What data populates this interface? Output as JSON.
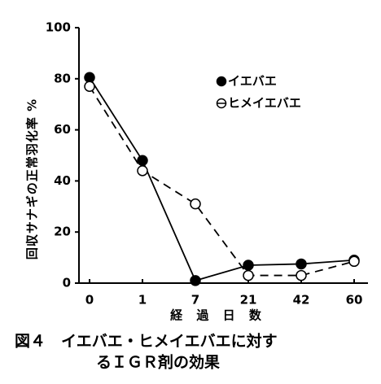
{
  "chart_data": {
    "type": "line",
    "y_label": "回収サナギの正常羽化率 %",
    "x_label": "経 過 日 数",
    "caption": [
      "図４　イエバエ・ヒメイエバエに対す",
      "るＩＧＲ剤の効果"
    ],
    "categories": [
      "0",
      "1",
      "7",
      "21",
      "42",
      "60"
    ],
    "series": [
      {
        "name": "イエバエ",
        "color": "#000000",
        "marker": "filled",
        "line_style": "solid",
        "values": [
          80.5,
          48,
          1,
          7,
          7.5,
          9
        ]
      },
      {
        "name": "ヒメイエバエ",
        "color": "#000000",
        "marker": "open",
        "line_style": "dashed",
        "values": [
          77,
          44,
          31,
          3,
          3,
          8.5
        ]
      }
    ],
    "ylim": [
      0,
      100
    ],
    "yticks": [
      0,
      20,
      40,
      60,
      80,
      100
    ],
    "grid": false
  }
}
